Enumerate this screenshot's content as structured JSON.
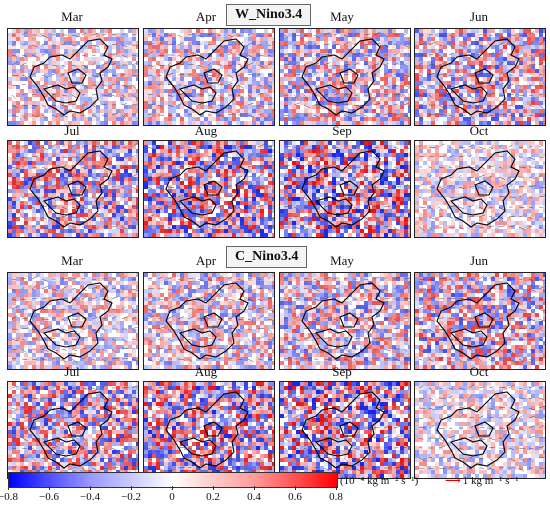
{
  "sections": [
    {
      "title": "W_Nino3.4",
      "rows": [
        [
          "Mar",
          "Apr",
          "May",
          "Jun"
        ],
        [
          "Jul",
          "Aug",
          "Sep",
          "Oct"
        ]
      ]
    },
    {
      "title": "C_Nino3.4",
      "rows": [
        [
          "Mar",
          "Apr",
          "May",
          "Jun"
        ],
        [
          "Jul",
          "Aug",
          "Sep",
          "Oct"
        ]
      ]
    }
  ],
  "colorbar": {
    "ticks": [
      "−0.8",
      "−0.6",
      "−0.4",
      "−0.2",
      "0",
      "0.2",
      "0.4",
      "0.6",
      "0.8"
    ],
    "unit": "(10⁻⁴ kg m⁻² s⁻¹)",
    "negative_color": "#0000ff",
    "positive_color": "#ff0000"
  },
  "vector_key": {
    "label": "1 kg m⁻¹ s⁻¹",
    "color": "#e00000"
  }
}
